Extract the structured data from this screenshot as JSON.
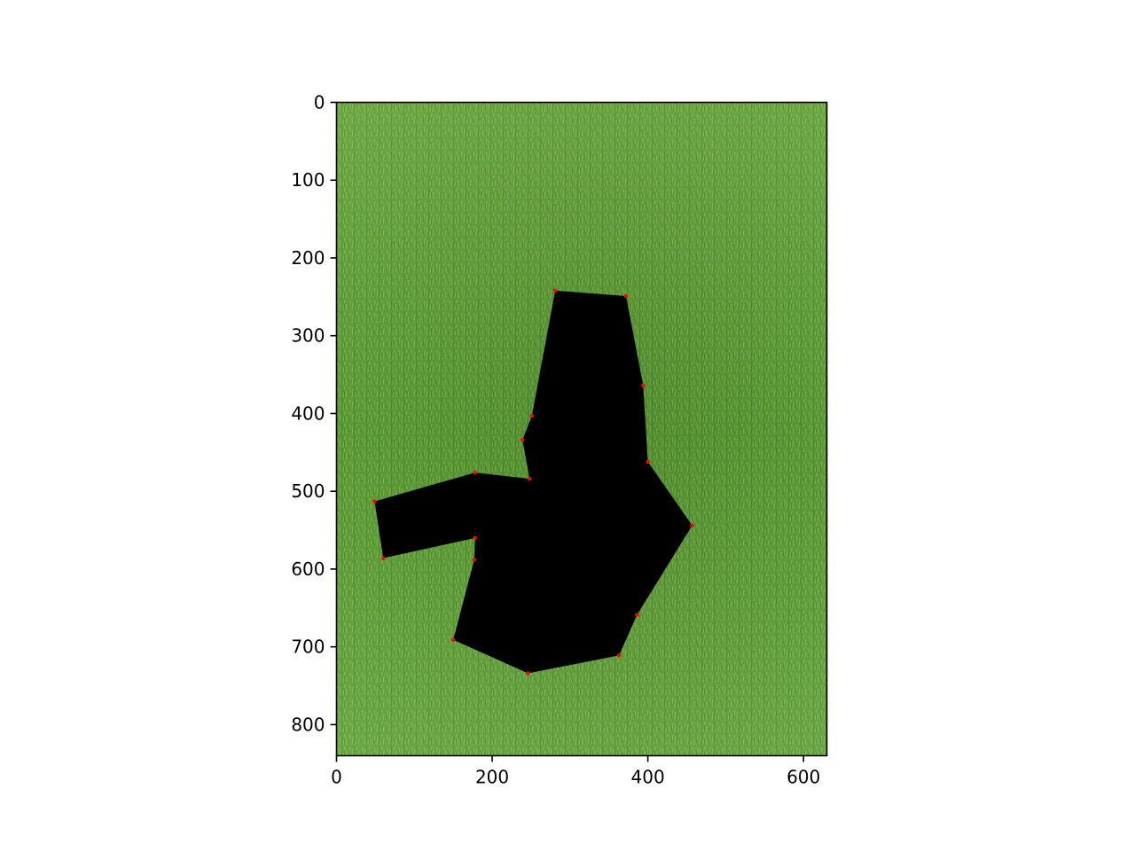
{
  "chart_data": {
    "type": "scatter",
    "title": "",
    "xlabel": "",
    "ylabel": "",
    "xlim": [
      0,
      630
    ],
    "ylim": [
      840,
      0
    ],
    "y_axis_inverted": true,
    "grid": false,
    "legend": "none",
    "background_image": "grass-lawn-photo",
    "x_ticks": [
      0,
      200,
      400,
      600
    ],
    "y_ticks": [
      0,
      100,
      200,
      300,
      400,
      500,
      600,
      700,
      800
    ],
    "x_tick_labels": [
      "0",
      "200",
      "400",
      "600"
    ],
    "y_tick_labels": [
      "0",
      "100",
      "200",
      "300",
      "400",
      "500",
      "600",
      "700",
      "800"
    ],
    "polygon_fill_color": "#000000",
    "point_color": "#ff0000",
    "polygon": [
      [
        281,
        242
      ],
      [
        372,
        249
      ],
      [
        394,
        364
      ],
      [
        400,
        462
      ],
      [
        457,
        544
      ],
      [
        386,
        659
      ],
      [
        363,
        711
      ],
      [
        246,
        734
      ],
      [
        150,
        691
      ],
      [
        177,
        588
      ],
      [
        178,
        560
      ],
      [
        60,
        586
      ],
      [
        49,
        513
      ],
      [
        178,
        476
      ],
      [
        248,
        484
      ],
      [
        239,
        434
      ],
      [
        251,
        403
      ]
    ]
  }
}
